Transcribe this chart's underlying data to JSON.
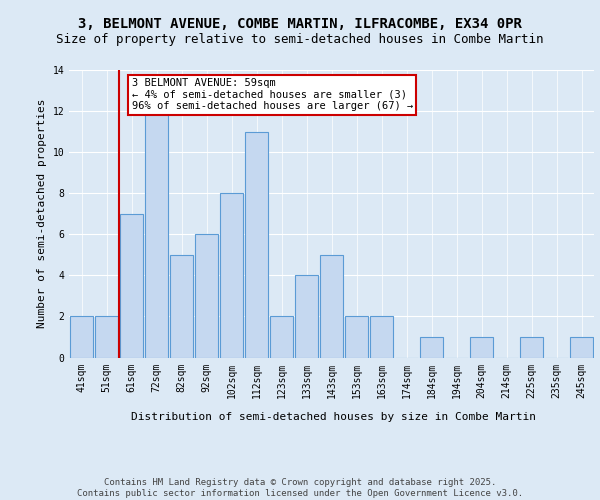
{
  "title1": "3, BELMONT AVENUE, COMBE MARTIN, ILFRACOMBE, EX34 0PR",
  "title2": "Size of property relative to semi-detached houses in Combe Martin",
  "xlabel": "Distribution of semi-detached houses by size in Combe Martin",
  "ylabel": "Number of semi-detached properties",
  "categories": [
    "41sqm",
    "51sqm",
    "61sqm",
    "72sqm",
    "82sqm",
    "92sqm",
    "102sqm",
    "112sqm",
    "123sqm",
    "133sqm",
    "143sqm",
    "153sqm",
    "163sqm",
    "174sqm",
    "184sqm",
    "194sqm",
    "204sqm",
    "214sqm",
    "225sqm",
    "235sqm",
    "245sqm"
  ],
  "values": [
    2,
    2,
    7,
    12,
    5,
    6,
    8,
    11,
    2,
    4,
    5,
    2,
    2,
    0,
    1,
    0,
    1,
    0,
    1,
    0,
    1
  ],
  "bar_color": "#c5d8f0",
  "bar_edge_color": "#5b9bd5",
  "subject_line_color": "#cc0000",
  "annotation_text": "3 BELMONT AVENUE: 59sqm\n← 4% of semi-detached houses are smaller (3)\n96% of semi-detached houses are larger (67) →",
  "annotation_box_color": "#cc0000",
  "ylim": [
    0,
    14
  ],
  "yticks": [
    0,
    2,
    4,
    6,
    8,
    10,
    12,
    14
  ],
  "background_color": "#dce9f5",
  "footer": "Contains HM Land Registry data © Crown copyright and database right 2025.\nContains public sector information licensed under the Open Government Licence v3.0.",
  "title_fontsize": 10,
  "subtitle_fontsize": 9,
  "label_fontsize": 8,
  "tick_fontsize": 7,
  "annotation_fontsize": 7.5,
  "footer_fontsize": 6.5
}
